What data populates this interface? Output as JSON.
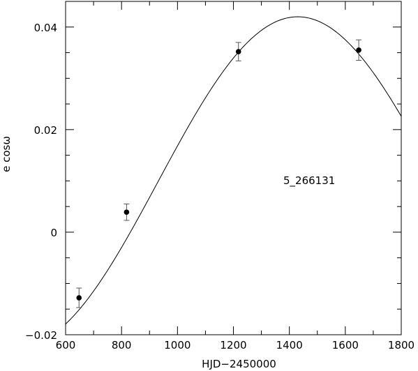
{
  "chart_data": {
    "type": "scatter",
    "title": "",
    "xlabel": "HJD−2450000",
    "ylabel": "e cosω",
    "xlim": [
      600,
      1800
    ],
    "ylim": [
      -0.02,
      0.045
    ],
    "x_ticks": [
      600,
      800,
      1000,
      1200,
      1400,
      1600,
      1800
    ],
    "x_tick_labels": [
      "600",
      "800",
      "1000",
      "1200",
      "1400",
      "1600",
      "1800"
    ],
    "y_ticks": [
      -0.02,
      0,
      0.02,
      0.04
    ],
    "y_tick_labels": [
      "−0.02",
      "0",
      "0.02",
      "0.04"
    ],
    "annotation": "5_266131",
    "grid": false,
    "legend": "none",
    "points": [
      {
        "x": 648,
        "y": -0.0128,
        "err": 0.0019
      },
      {
        "x": 818,
        "y": 0.0039,
        "err": 0.0016
      },
      {
        "x": 1218,
        "y": 0.0352,
        "err": 0.0018
      },
      {
        "x": 1648,
        "y": 0.0355,
        "err": 0.002
      }
    ],
    "curve": {
      "type": "sinusoid",
      "amplitude": 0.0322,
      "offset": 0.0098,
      "period": 2000,
      "phase_peak_x": 1430
    },
    "colors": {
      "axes": "#000000",
      "points": "#000000",
      "errorbars": "#555555",
      "curve": "#000000"
    }
  }
}
